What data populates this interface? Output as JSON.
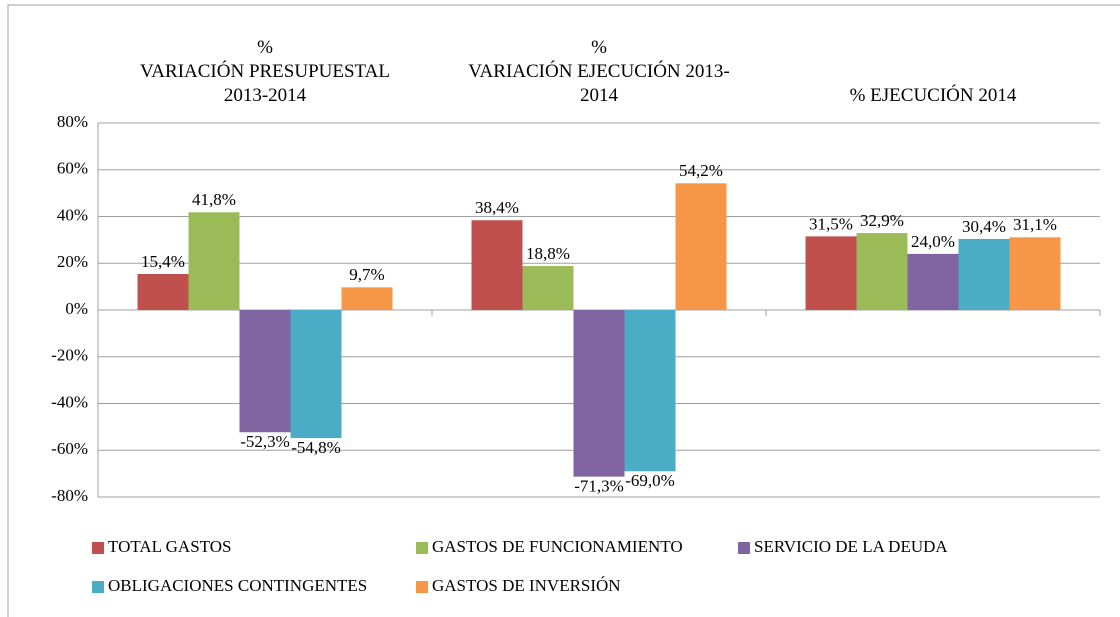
{
  "chart_data": {
    "type": "bar",
    "categories": [
      "%\nVARIACIÓN PRESUPUESTAL\n2013-2014",
      "%\nVARIACIÓN EJECUCIÓN 2013-\n2014",
      "% EJECUCIÓN 2014"
    ],
    "series": [
      {
        "name": "TOTAL GASTOS",
        "color": "#c0504d",
        "values": [
          15.4,
          38.4,
          31.5
        ],
        "value_labels": [
          "15,4%",
          "38,4%",
          "31,5%"
        ]
      },
      {
        "name": "GASTOS DE FUNCIONAMIENTO",
        "color": "#9bbb59",
        "values": [
          41.8,
          18.8,
          32.9
        ],
        "value_labels": [
          "41,8%",
          "18,8%",
          "32,9%"
        ]
      },
      {
        "name": "SERVICIO DE LA DEUDA",
        "color": "#8064a2",
        "values": [
          -52.3,
          -71.3,
          24.0
        ],
        "value_labels": [
          "-52,3%",
          "-71,3%",
          "24,0%"
        ]
      },
      {
        "name": "OBLIGACIONES CONTINGENTES",
        "color": "#4bacc6",
        "values": [
          -54.8,
          -69.0,
          30.4
        ],
        "value_labels": [
          "-54,8%",
          "-69,0%",
          "30,4%"
        ]
      },
      {
        "name": "GASTOS DE INVERSIÓN",
        "color": "#f79646",
        "values": [
          9.7,
          54.2,
          31.1
        ],
        "value_labels": [
          "9,7%",
          "54,2%",
          "31,1%"
        ]
      }
    ],
    "ylim": [
      -80,
      80
    ],
    "yticks": [
      {
        "value": -80,
        "label": "-80%"
      },
      {
        "value": -60,
        "label": "-60%"
      },
      {
        "value": -40,
        "label": "-40%"
      },
      {
        "value": -20,
        "label": "-20%"
      },
      {
        "value": 0,
        "label": "0%"
      },
      {
        "value": 20,
        "label": "20%"
      },
      {
        "value": 40,
        "label": "40%"
      },
      {
        "value": 60,
        "label": "60%"
      },
      {
        "value": 80,
        "label": "80%"
      }
    ],
    "grid": true,
    "legend": "bottom"
  }
}
